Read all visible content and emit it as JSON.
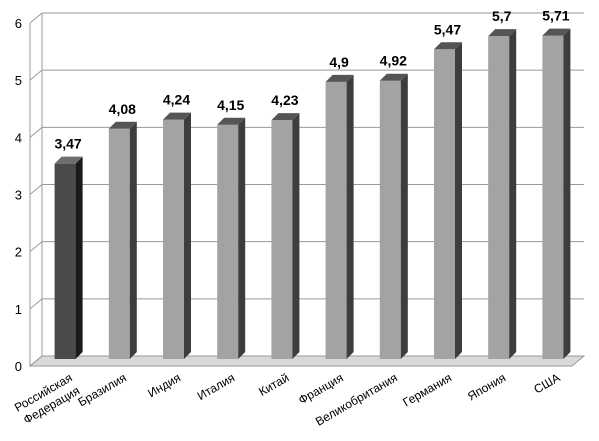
{
  "chart_data": {
    "type": "bar",
    "categories": [
      "Российская Федерация",
      "Бразилия",
      "Индия",
      "Италия",
      "Китай",
      "Франция",
      "Великобритания",
      "Германия",
      "Япония",
      "США"
    ],
    "category_lines": [
      [
        "Российская",
        "Федерация"
      ],
      [
        "Бразилия"
      ],
      [
        "Индия"
      ],
      [
        "Италия"
      ],
      [
        "Китай"
      ],
      [
        "Франция"
      ],
      [
        "Великобритания"
      ],
      [
        "Германия"
      ],
      [
        "Япония"
      ],
      [
        "США"
      ]
    ],
    "values": [
      3.47,
      4.08,
      4.24,
      4.15,
      4.23,
      4.9,
      4.92,
      5.47,
      5.7,
      5.71
    ],
    "data_labels": [
      "3,47",
      "4,08",
      "4,24",
      "4,15",
      "4,23",
      "4,9",
      "4,92",
      "5,47",
      "5,7",
      "5,71"
    ],
    "yticks": [
      "0",
      "1",
      "2",
      "3",
      "4",
      "5",
      "6"
    ],
    "ylim": [
      0,
      6
    ],
    "grid": true,
    "legend": "none",
    "style": "3d-column",
    "colors": {
      "highlight_front": "#4a4a4a",
      "highlight_side": "#1a1a1a",
      "highlight_top": "#6e6e6e",
      "bar_front": "#a3a3a3",
      "bar_side": "#3d3d3d",
      "bar_top": "#555555",
      "grid": "#9a9a9a",
      "floor": "#d9d9d9"
    },
    "highlight_index": 0
  }
}
